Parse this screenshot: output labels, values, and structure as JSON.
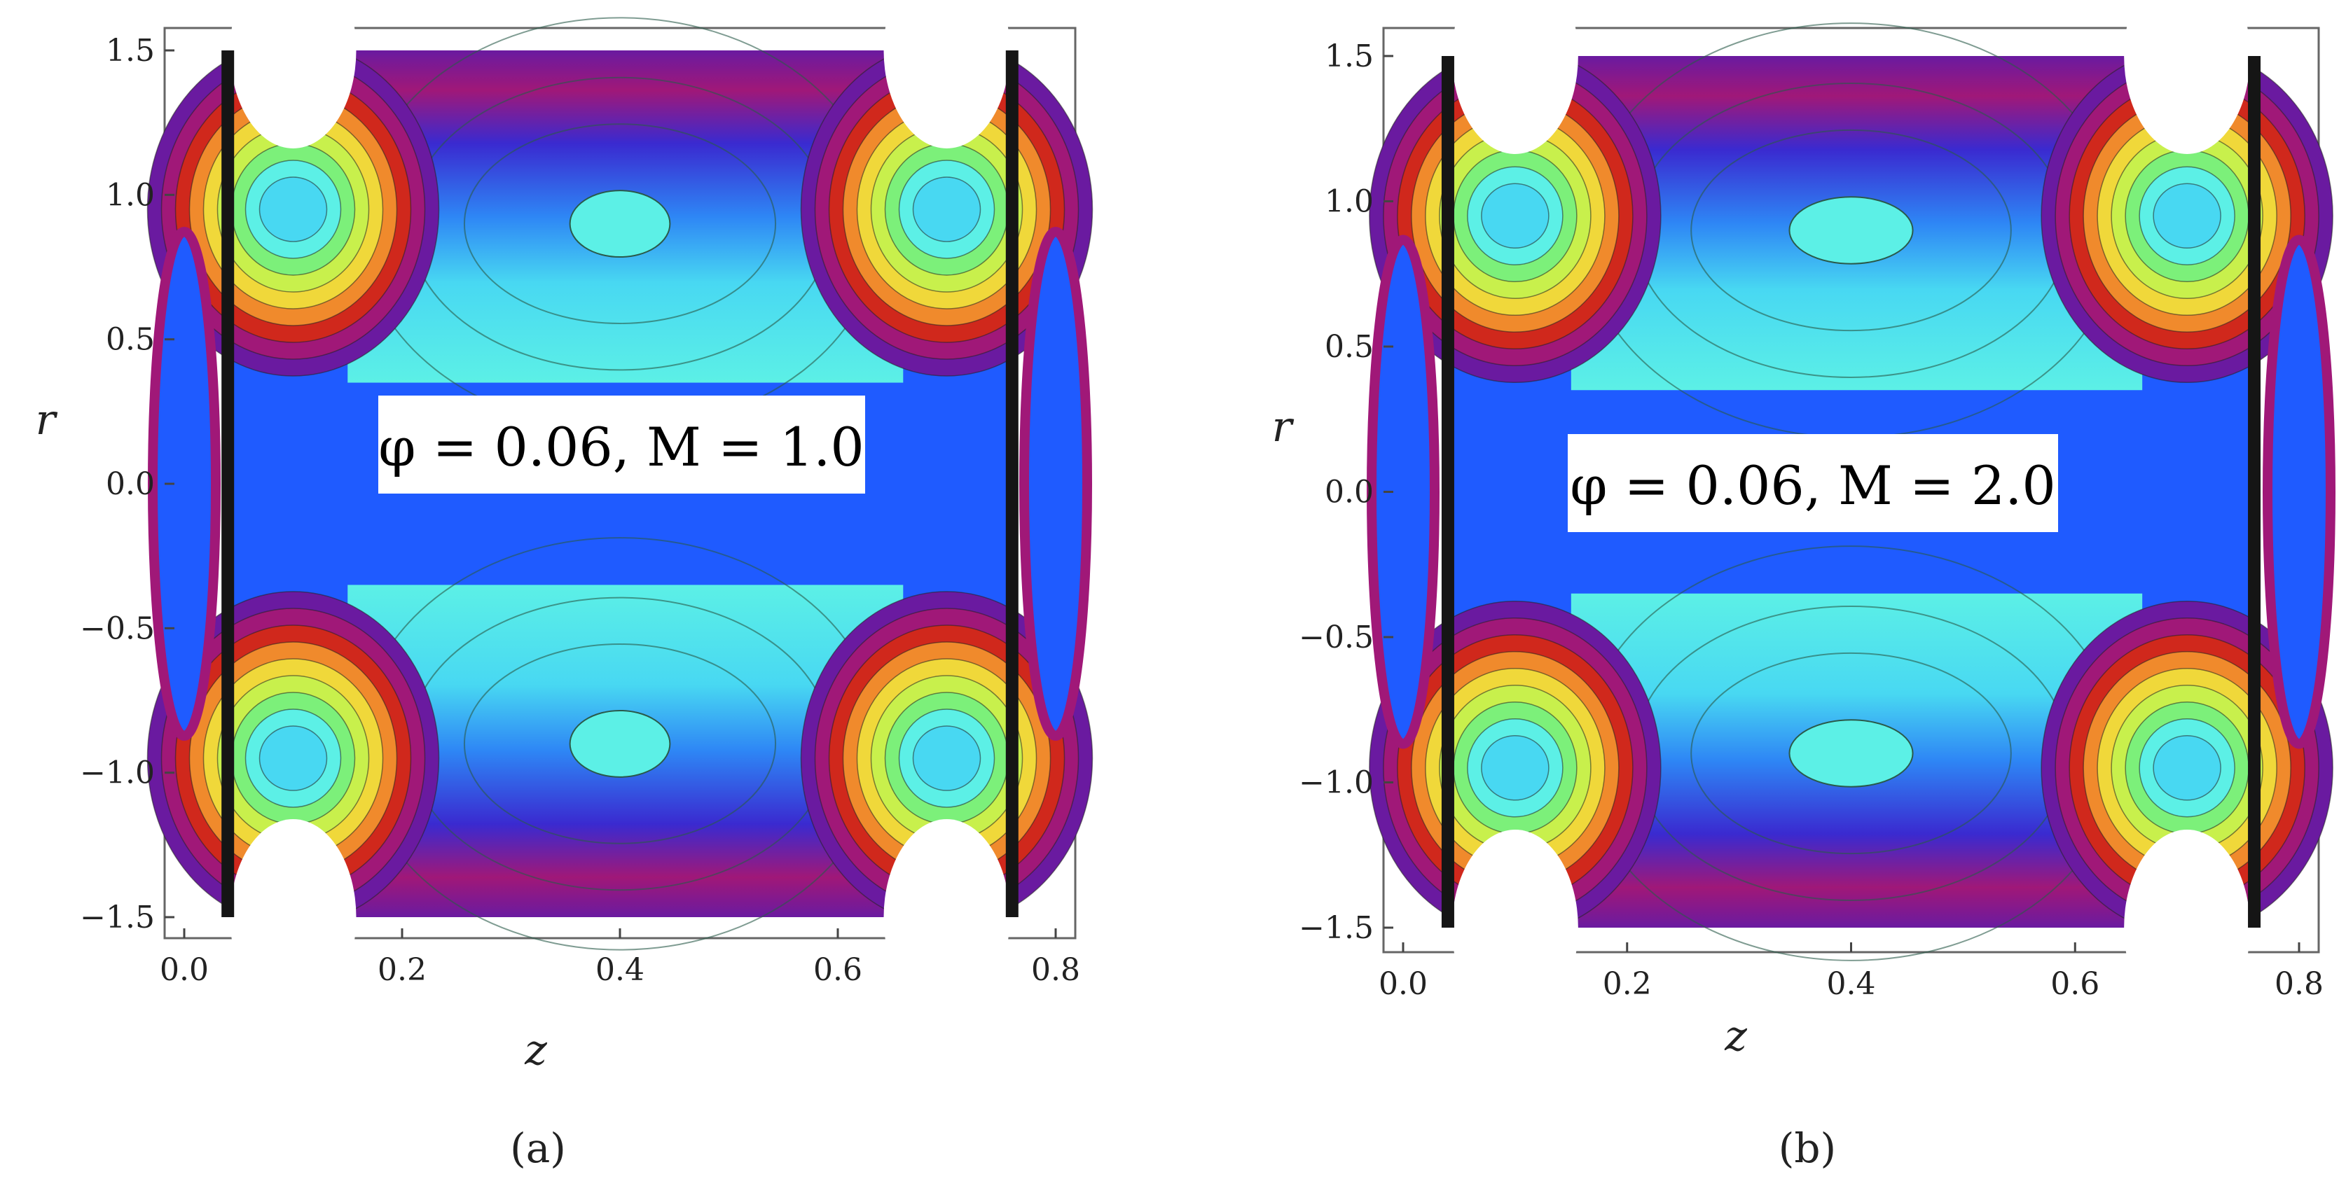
{
  "chart_data": [
    {
      "type": "contour",
      "panel_label": "(a)",
      "annotation": "φ = 0.06, M = 1.0",
      "xlabel": "z",
      "ylabel": "r",
      "xlim": [
        0.0,
        0.8
      ],
      "ylim": [
        -1.5,
        1.5
      ],
      "x_ticks": [
        "0.0",
        "0.2",
        "0.4",
        "0.6",
        "0.8"
      ],
      "y_ticks": [
        "1.5",
        "1.0",
        "0.5",
        "0.0",
        "−0.5",
        "−1.0",
        "−1.5"
      ],
      "grid": false,
      "colormap": [
        "#1F5BFF",
        "#2E86F5",
        "#3BB0F0",
        "#48D8F2",
        "#5CF0E6",
        "#7CF07A",
        "#C8F04C",
        "#F0D83A",
        "#F08A2C",
        "#D0281C",
        "#A01878",
        "#6A1AA0",
        "#2A1A50"
      ]
    },
    {
      "type": "contour",
      "panel_label": "(b)",
      "annotation": "φ = 0.06, M = 2.0",
      "xlabel": "z",
      "ylabel": "r",
      "xlim": [
        0.0,
        0.8
      ],
      "ylim": [
        -1.5,
        1.5
      ],
      "x_ticks": [
        "0.0",
        "0.2",
        "0.4",
        "0.6",
        "0.8"
      ],
      "y_ticks": [
        "1.5",
        "1.0",
        "0.5",
        "0.0",
        "−0.5",
        "−1.0",
        "−1.5"
      ],
      "grid": false,
      "colormap": [
        "#1F5BFF",
        "#2E86F5",
        "#3BB0F0",
        "#48D8F2",
        "#5CF0E6",
        "#7CF07A",
        "#C8F04C",
        "#F0D83A",
        "#F08A2C",
        "#D0281C",
        "#A01878",
        "#6A1AA0",
        "#2A1A50"
      ]
    }
  ]
}
